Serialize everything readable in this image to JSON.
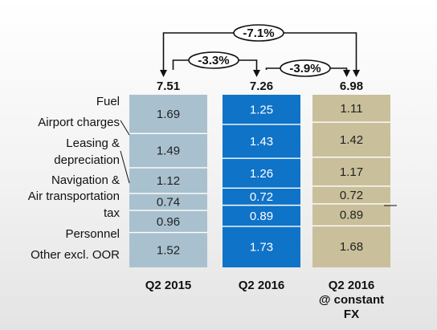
{
  "chart_data": {
    "type": "bar",
    "stacked": true,
    "categories": [
      "Q2 2015",
      "Q2 2016",
      "Q2 2016 @ constant FX"
    ],
    "category_lines": [
      [
        "Q2 2015"
      ],
      [
        "Q2 2016"
      ],
      [
        "Q2 2016",
        "@ constant",
        "FX"
      ]
    ],
    "totals": [
      "7.51",
      "7.26",
      "6.98"
    ],
    "series": [
      {
        "name": "Fuel",
        "values": [
          1.69,
          1.25,
          1.11
        ],
        "labels": [
          "1.69",
          "1.25",
          "1.11"
        ]
      },
      {
        "name": "Airport charges",
        "values": [
          1.49,
          1.43,
          1.42
        ],
        "labels": [
          "1.49",
          "1.43",
          "1.42"
        ]
      },
      {
        "name": "Leasing & depreciation",
        "values": [
          1.12,
          1.26,
          1.17
        ],
        "labels": [
          "1.12",
          "1.26",
          "1.17"
        ]
      },
      {
        "name": "Navigation & Air transportation tax",
        "values": [
          0.74,
          0.72,
          0.72
        ],
        "labels": [
          "0.74",
          "0.72",
          "0.72"
        ]
      },
      {
        "name": "Personnel",
        "values": [
          0.96,
          0.89,
          0.89
        ],
        "labels": [
          "0.96",
          "0.89",
          "0.89"
        ]
      },
      {
        "name": "Other excl. OOR",
        "values": [
          1.52,
          1.73,
          1.68
        ],
        "labels": [
          "1.52",
          "1.73",
          "1.68"
        ]
      }
    ],
    "legend_labels": [
      {
        "lines": [
          "Fuel"
        ]
      },
      {
        "lines": [
          "Airport charges"
        ]
      },
      {
        "lines": [
          "Leasing &",
          "depreciation"
        ]
      },
      {
        "lines": [
          "Navigation &",
          "Air transportation",
          "tax"
        ]
      },
      {
        "lines": [
          "Personnel"
        ]
      },
      {
        "lines": [
          "Other excl. OOR"
        ]
      }
    ],
    "changes": [
      {
        "from": 0,
        "to": 2,
        "label": "-7.1%"
      },
      {
        "from": 0,
        "to": 1,
        "label": "-3.3%"
      },
      {
        "from": 1,
        "to": 2,
        "label": "-3.9%"
      }
    ],
    "colors": {
      "bars": [
        "#a9c1ce",
        "#0f73c8",
        "#c9bf9b"
      ],
      "value_text": [
        "#222222",
        "#ffffff",
        "#222222"
      ],
      "separator": "#ffffff"
    }
  }
}
